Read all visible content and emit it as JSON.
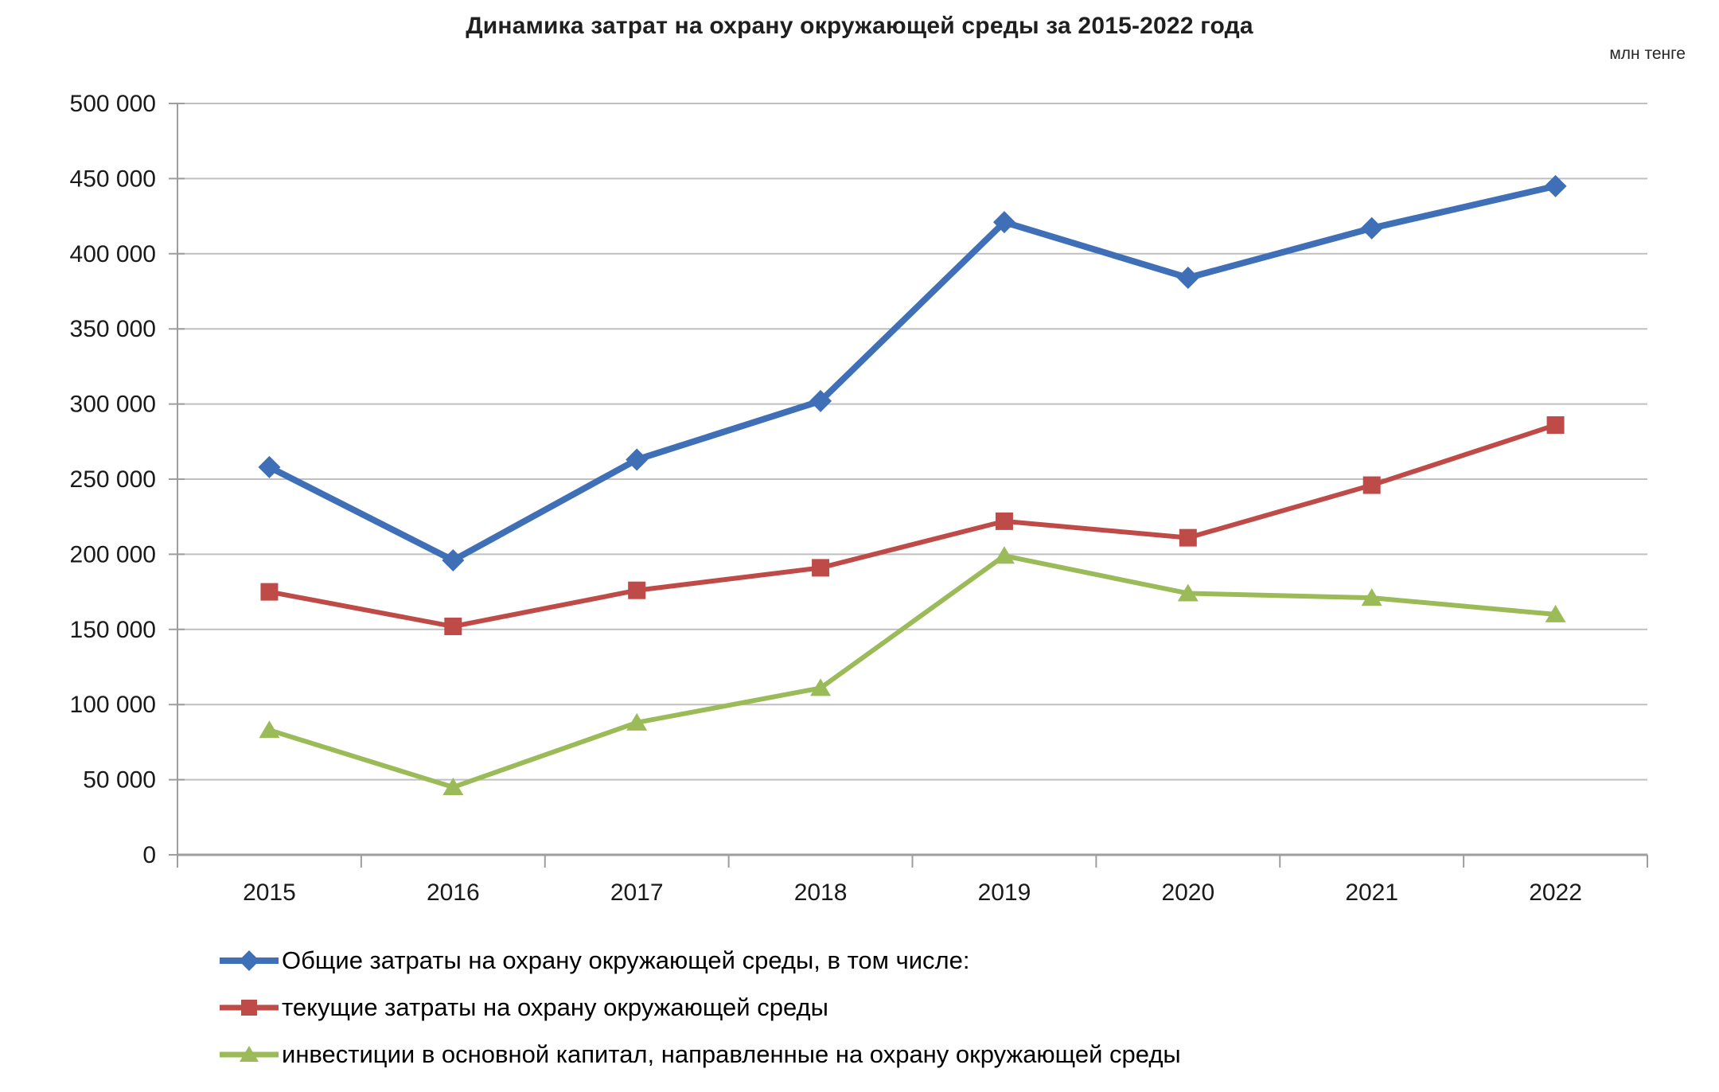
{
  "title": "Динамика затрат на охрану окружающей среды за 2015-2022 года",
  "unit_label": "млн тенге",
  "chart_data": {
    "type": "line",
    "title": "Динамика затрат на охрану окружающей среды за 2015-2022 года",
    "unit": "млн тенге",
    "categories": [
      "2015",
      "2016",
      "2017",
      "2018",
      "2019",
      "2020",
      "2021",
      "2022"
    ],
    "series": [
      {
        "name": "Общие затраты на охрану окружающей среды, в том числе:",
        "marker": "diamond",
        "color": "#3E6FB7",
        "values": [
          258000,
          196000,
          263000,
          302000,
          421000,
          384000,
          417000,
          445000
        ]
      },
      {
        "name": "текущие затраты на охрану окружающей среды",
        "marker": "square",
        "color": "#BE4B48",
        "values": [
          175000,
          152000,
          176000,
          191000,
          222000,
          211000,
          246000,
          286000
        ]
      },
      {
        "name": "инвестиции в основной капитал, направленные на охрану окружающей среды",
        "marker": "triangle",
        "color": "#9BBB59",
        "values": [
          83000,
          45000,
          88000,
          111000,
          199000,
          174000,
          171000,
          160000
        ]
      }
    ],
    "ylim": [
      0,
      500000
    ],
    "ytick_step": 50000,
    "y_tick_labels": [
      "0",
      "50 000",
      "100 000",
      "150 000",
      "200 000",
      "250 000",
      "300 000",
      "350 000",
      "400 000",
      "450 000",
      "500 000"
    ],
    "grid": true,
    "legend_position": "bottom-left",
    "gridline_color": "#BFBFBF",
    "axis_color": "#9E9E9E",
    "text_color": "#1A1A1A"
  }
}
